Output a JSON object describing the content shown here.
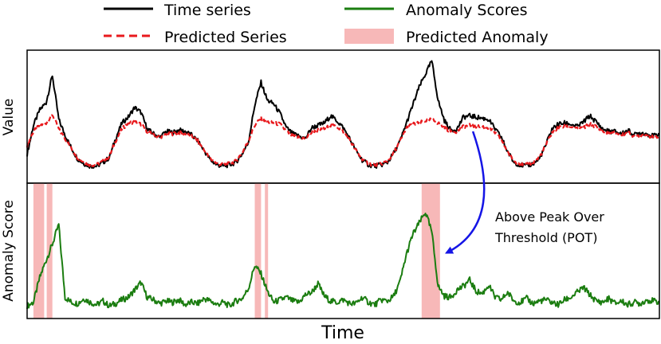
{
  "chart_data": [
    {
      "type": "line",
      "panel": "top",
      "ylabel": "Value",
      "xlim": [
        0,
        100
      ],
      "ylim": [
        0,
        1
      ],
      "grid": false,
      "series": [
        {
          "name": "Time series",
          "color": "#000000",
          "style": "solid",
          "x": [
            0,
            1,
            2,
            3,
            4,
            5,
            6,
            7,
            8,
            9,
            10,
            11,
            12,
            13,
            14,
            15,
            16,
            17,
            18,
            19,
            20,
            21,
            22,
            23,
            24,
            25,
            26,
            27,
            28,
            29,
            30,
            31,
            32,
            33,
            34,
            35,
            36,
            37,
            38,
            39,
            40,
            41,
            42,
            43,
            44,
            45,
            46,
            47,
            48,
            49,
            50,
            51,
            52,
            53,
            54,
            55,
            56,
            57,
            58,
            59,
            60,
            61,
            62,
            63,
            64,
            65,
            66,
            67,
            68,
            69,
            70,
            71,
            72,
            73,
            74,
            75,
            76,
            77,
            78,
            79,
            80,
            81,
            82,
            83,
            84,
            85,
            86,
            87,
            88,
            89,
            90,
            91,
            92,
            93,
            94,
            95,
            96,
            97,
            98,
            99,
            100
          ],
          "values": [
            0.19,
            0.43,
            0.56,
            0.62,
            0.85,
            0.48,
            0.35,
            0.24,
            0.15,
            0.11,
            0.09,
            0.09,
            0.12,
            0.16,
            0.32,
            0.45,
            0.5,
            0.58,
            0.54,
            0.4,
            0.36,
            0.33,
            0.38,
            0.37,
            0.39,
            0.38,
            0.35,
            0.3,
            0.22,
            0.14,
            0.1,
            0.09,
            0.1,
            0.12,
            0.19,
            0.29,
            0.6,
            0.79,
            0.64,
            0.61,
            0.53,
            0.41,
            0.36,
            0.34,
            0.32,
            0.41,
            0.43,
            0.45,
            0.51,
            0.47,
            0.41,
            0.32,
            0.22,
            0.14,
            0.1,
            0.09,
            0.1,
            0.12,
            0.2,
            0.3,
            0.45,
            0.6,
            0.75,
            0.86,
            0.97,
            0.64,
            0.47,
            0.39,
            0.4,
            0.5,
            0.51,
            0.5,
            0.49,
            0.48,
            0.4,
            0.33,
            0.21,
            0.12,
            0.1,
            0.09,
            0.11,
            0.15,
            0.26,
            0.4,
            0.44,
            0.45,
            0.44,
            0.42,
            0.46,
            0.51,
            0.46,
            0.4,
            0.38,
            0.38,
            0.36,
            0.39,
            0.35,
            0.37,
            0.36,
            0.34,
            0.36
          ]
        },
        {
          "name": "Predicted Series",
          "color": "#e8191d",
          "style": "dashed",
          "x": [
            0,
            1,
            2,
            3,
            4,
            5,
            6,
            7,
            8,
            9,
            10,
            11,
            12,
            13,
            14,
            15,
            16,
            17,
            18,
            19,
            20,
            21,
            22,
            23,
            24,
            25,
            26,
            27,
            28,
            29,
            30,
            31,
            32,
            33,
            34,
            35,
            36,
            37,
            38,
            39,
            40,
            41,
            42,
            43,
            44,
            45,
            46,
            47,
            48,
            49,
            50,
            51,
            52,
            53,
            54,
            55,
            56,
            57,
            58,
            59,
            60,
            61,
            62,
            63,
            64,
            65,
            66,
            67,
            68,
            69,
            70,
            71,
            72,
            73,
            74,
            75,
            76,
            77,
            78,
            79,
            80,
            81,
            82,
            83,
            84,
            85,
            86,
            87,
            88,
            89,
            90,
            91,
            92,
            93,
            94,
            95,
            96,
            97,
            98,
            99,
            100
          ],
          "values": [
            0.26,
            0.38,
            0.43,
            0.45,
            0.52,
            0.4,
            0.32,
            0.24,
            0.16,
            0.12,
            0.1,
            0.1,
            0.13,
            0.17,
            0.3,
            0.4,
            0.45,
            0.46,
            0.44,
            0.38,
            0.35,
            0.33,
            0.36,
            0.36,
            0.37,
            0.36,
            0.34,
            0.3,
            0.22,
            0.15,
            0.11,
            0.1,
            0.11,
            0.13,
            0.2,
            0.3,
            0.43,
            0.49,
            0.46,
            0.45,
            0.44,
            0.38,
            0.34,
            0.33,
            0.32,
            0.37,
            0.39,
            0.4,
            0.43,
            0.42,
            0.38,
            0.31,
            0.22,
            0.15,
            0.11,
            0.1,
            0.11,
            0.13,
            0.2,
            0.3,
            0.41,
            0.44,
            0.45,
            0.47,
            0.48,
            0.45,
            0.41,
            0.38,
            0.38,
            0.42,
            0.43,
            0.42,
            0.42,
            0.41,
            0.37,
            0.31,
            0.21,
            0.13,
            0.11,
            0.1,
            0.12,
            0.16,
            0.26,
            0.37,
            0.41,
            0.42,
            0.42,
            0.4,
            0.41,
            0.44,
            0.42,
            0.38,
            0.36,
            0.37,
            0.35,
            0.37,
            0.34,
            0.35,
            0.35,
            0.33,
            0.34
          ]
        }
      ]
    },
    {
      "type": "line",
      "panel": "bottom",
      "ylabel": "Anomaly Score",
      "xlabel": "Time",
      "xlim": [
        0,
        100
      ],
      "ylim": [
        0,
        1
      ],
      "grid": false,
      "series": [
        {
          "name": "Anomaly Scores",
          "color": "#1b7d10",
          "style": "solid",
          "x": [
            0,
            1,
            2,
            3,
            4,
            5,
            6,
            7,
            8,
            9,
            10,
            11,
            12,
            13,
            14,
            15,
            16,
            17,
            18,
            19,
            20,
            21,
            22,
            23,
            24,
            25,
            26,
            27,
            28,
            29,
            30,
            31,
            32,
            33,
            34,
            35,
            36,
            37,
            38,
            39,
            40,
            41,
            42,
            43,
            44,
            45,
            46,
            47,
            48,
            49,
            50,
            51,
            52,
            53,
            54,
            55,
            56,
            57,
            58,
            59,
            60,
            61,
            62,
            63,
            64,
            65,
            66,
            67,
            68,
            69,
            70,
            71,
            72,
            73,
            74,
            75,
            76,
            77,
            78,
            79,
            80,
            81,
            82,
            83,
            84,
            85,
            86,
            87,
            88,
            89,
            90,
            91,
            92,
            93,
            94,
            95,
            96,
            97,
            98,
            99,
            100
          ],
          "values": [
            0.05,
            0.08,
            0.28,
            0.42,
            0.55,
            0.71,
            0.12,
            0.08,
            0.07,
            0.11,
            0.08,
            0.06,
            0.09,
            0.05,
            0.07,
            0.1,
            0.12,
            0.18,
            0.24,
            0.12,
            0.1,
            0.07,
            0.09,
            0.08,
            0.1,
            0.06,
            0.08,
            0.07,
            0.11,
            0.09,
            0.06,
            0.08,
            0.05,
            0.09,
            0.11,
            0.19,
            0.38,
            0.31,
            0.17,
            0.08,
            0.1,
            0.12,
            0.09,
            0.08,
            0.14,
            0.16,
            0.23,
            0.13,
            0.09,
            0.08,
            0.1,
            0.07,
            0.07,
            0.12,
            0.08,
            0.06,
            0.1,
            0.09,
            0.13,
            0.25,
            0.47,
            0.63,
            0.72,
            0.81,
            0.65,
            0.21,
            0.13,
            0.12,
            0.18,
            0.21,
            0.26,
            0.17,
            0.15,
            0.22,
            0.12,
            0.1,
            0.16,
            0.09,
            0.08,
            0.11,
            0.07,
            0.09,
            0.1,
            0.08,
            0.06,
            0.1,
            0.12,
            0.16,
            0.2,
            0.14,
            0.09,
            0.08,
            0.11,
            0.07,
            0.09,
            0.06,
            0.08,
            0.07,
            0.1,
            0.09,
            0.08
          ]
        }
      ],
      "anomaly_regions": {
        "name": "Predicted Anomaly",
        "color": "#f7b8b8",
        "ranges": [
          [
            1.0,
            2.7
          ],
          [
            3.1,
            4.0
          ],
          [
            36.0,
            37.0
          ],
          [
            37.6,
            38.1
          ],
          [
            62.4,
            65.3
          ]
        ]
      },
      "annotation": {
        "text_lines": [
          "Above Peak Over",
          "Threshold (POT)"
        ],
        "arrow_color": "#1515e6",
        "from": {
          "panel": "top",
          "x": 70.5,
          "y": 0.38
        },
        "to": {
          "panel": "bottom",
          "x": 66.3,
          "y": 0.48
        }
      }
    }
  ],
  "legend": {
    "placement": "top",
    "entries": [
      {
        "label": "Time series",
        "kind": "solid",
        "color": "#000000"
      },
      {
        "label": "Anomaly Scores",
        "kind": "solid",
        "color": "#1b7d10"
      },
      {
        "label": "Predicted Series",
        "kind": "dashed",
        "color": "#e8191d"
      },
      {
        "label": "Predicted Anomaly",
        "kind": "box",
        "color": "#f7b8b8"
      }
    ]
  }
}
